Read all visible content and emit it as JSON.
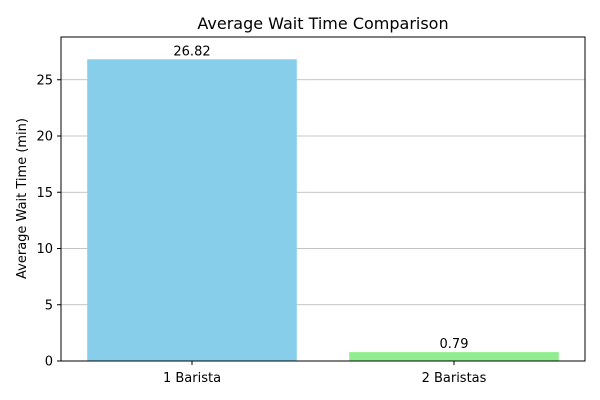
{
  "chart_data": {
    "type": "bar",
    "title": "Average Wait Time Comparison",
    "xlabel": "",
    "ylabel": "Average Wait Time (min)",
    "categories": [
      "1 Barista",
      "2 Baristas"
    ],
    "values": [
      26.82,
      0.79
    ],
    "value_labels": [
      "26.82",
      "0.79"
    ],
    "bar_colors": [
      "#87ceeb",
      "#90ee90"
    ],
    "ylim": [
      0,
      28.8
    ],
    "yticks": [
      0,
      5,
      10,
      15,
      20,
      25
    ],
    "ytick_labels": [
      "0",
      "5",
      "10",
      "15",
      "20",
      "25"
    ],
    "grid": "y-axis",
    "legend": "none"
  }
}
